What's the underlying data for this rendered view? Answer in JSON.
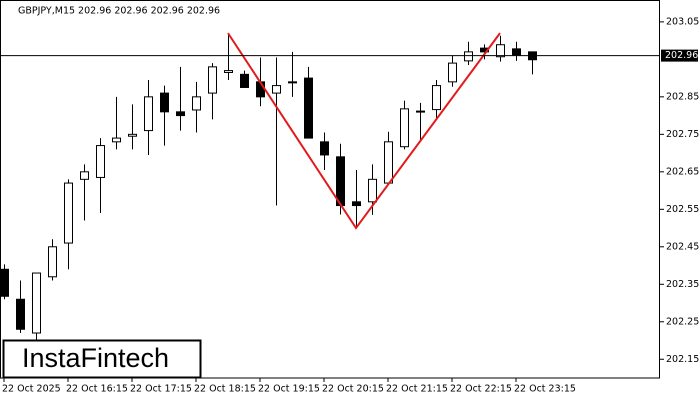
{
  "chart_data": {
    "type": "candlestick",
    "title": "GBPJPY,M15  202.96 202.96 202.96 202.96",
    "watermark": "InstaFintech",
    "categories": [
      "22 Oct 2025",
      null,
      null,
      null,
      "22 Oct 16:15",
      null,
      null,
      null,
      "22 Oct 17:15",
      null,
      null,
      null,
      "22 Oct 18:15",
      null,
      null,
      null,
      "22 Oct 19:15",
      null,
      null,
      null,
      "22 Oct 20:15",
      null,
      null,
      null,
      "22 Oct 21:15",
      null,
      null,
      null,
      "22 Oct 22:15",
      null,
      null,
      null,
      "22 Oct 23:15",
      null
    ],
    "open": [
      202.39,
      202.31,
      202.22,
      202.37,
      202.46,
      202.63,
      202.635,
      202.73,
      202.745,
      202.76,
      202.86,
      202.81,
      202.815,
      202.86,
      202.915,
      202.91,
      202.89,
      202.86,
      202.89,
      202.9,
      202.73,
      202.69,
      202.57,
      202.57,
      202.62,
      202.717,
      202.81,
      202.816,
      202.89,
      202.946,
      202.98,
      202.957,
      202.978,
      202.97
    ],
    "high": [
      202.403,
      202.36,
      202.38,
      202.47,
      202.63,
      202.67,
      202.74,
      202.85,
      202.83,
      202.895,
      202.88,
      202.93,
      202.89,
      202.94,
      203.02,
      202.92,
      202.955,
      202.955,
      202.97,
      202.93,
      202.755,
      202.725,
      202.655,
      202.67,
      202.757,
      202.84,
      202.834,
      202.895,
      202.96,
      202.997,
      202.99,
      203.013,
      202.997,
      202.97
    ],
    "low": [
      202.31,
      202.22,
      202.2,
      202.36,
      202.39,
      202.52,
      202.54,
      202.71,
      202.71,
      202.695,
      202.72,
      202.76,
      202.755,
      202.79,
      202.895,
      202.875,
      202.825,
      202.56,
      202.85,
      202.74,
      202.655,
      202.536,
      202.5,
      202.535,
      202.615,
      202.71,
      202.736,
      202.79,
      202.877,
      202.935,
      202.95,
      202.944,
      202.946,
      202.91
    ],
    "close": [
      202.318,
      202.23,
      202.38,
      202.45,
      202.62,
      202.65,
      202.72,
      202.74,
      202.75,
      202.85,
      202.81,
      202.8,
      202.85,
      202.93,
      202.92,
      202.875,
      202.85,
      202.88,
      202.89,
      202.74,
      202.695,
      202.56,
      202.56,
      202.63,
      202.73,
      202.818,
      202.812,
      202.88,
      202.94,
      202.97,
      202.97,
      202.989,
      202.962,
      202.949
    ],
    "current_price": 202.96,
    "pattern": {
      "color": "#e31a1c",
      "x": [
        14,
        22,
        31
      ],
      "values": [
        203.02,
        202.5,
        203.02
      ]
    },
    "ylim": [
      202.1,
      203.087
    ],
    "yticks": [
      203.05,
      202.85,
      202.75,
      202.65,
      202.55,
      202.45,
      202.35,
      202.25,
      202.15
    ]
  }
}
